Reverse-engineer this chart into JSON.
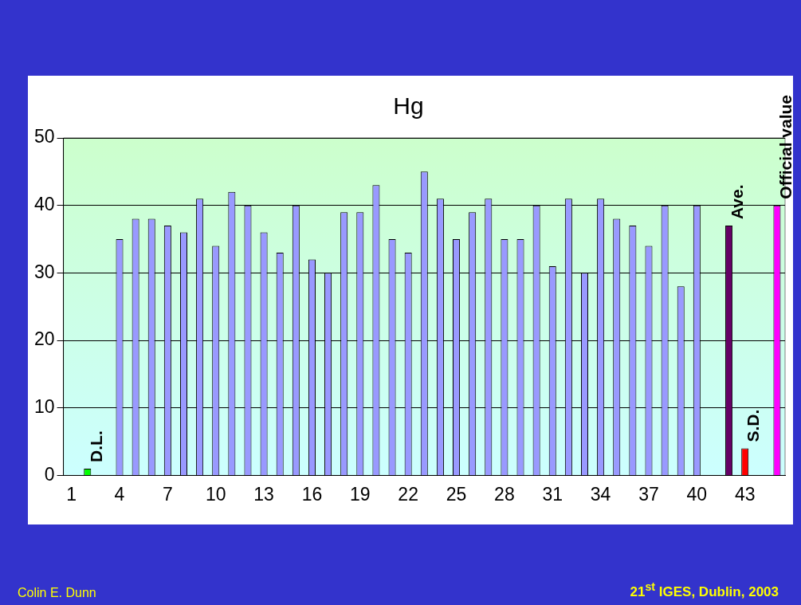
{
  "chart_data": {
    "type": "bar",
    "title": "Hg",
    "categories": [
      "1",
      null,
      null,
      "4",
      null,
      null,
      "7",
      null,
      null,
      "10",
      null,
      null,
      "13",
      null,
      null,
      "16",
      null,
      null,
      "19",
      null,
      null,
      "22",
      null,
      null,
      "25",
      null,
      null,
      "28",
      null,
      null,
      "31",
      null,
      null,
      "34",
      null,
      null,
      "37",
      null,
      null,
      "40",
      null,
      null,
      "43",
      null,
      null
    ],
    "series": [
      {
        "color": "#9999ff",
        "values": [
          null,
          null,
          null,
          35,
          38,
          38,
          37,
          36,
          41,
          34,
          42,
          40,
          36,
          33,
          40,
          32,
          30,
          39,
          39,
          43,
          35,
          33,
          45,
          41,
          35,
          39,
          41,
          35,
          35,
          40,
          31,
          41,
          30,
          41,
          38,
          37,
          34,
          40,
          28,
          40,
          null,
          null,
          null,
          null,
          null
        ]
      },
      {
        "name": "D.L.",
        "color": "#00ff00",
        "values": [
          null,
          1,
          null,
          null,
          null,
          null,
          null,
          null,
          null,
          null,
          null,
          null,
          null,
          null,
          null,
          null,
          null,
          null,
          null,
          null,
          null,
          null,
          null,
          null,
          null,
          null,
          null,
          null,
          null,
          null,
          null,
          null,
          null,
          null,
          null,
          null,
          null,
          null,
          null,
          null,
          null,
          null,
          null,
          null,
          null
        ]
      },
      {
        "name": "Ave.",
        "color": "#660066",
        "values": [
          null,
          null,
          null,
          null,
          null,
          null,
          null,
          null,
          null,
          null,
          null,
          null,
          null,
          null,
          null,
          null,
          null,
          null,
          null,
          null,
          null,
          null,
          null,
          null,
          null,
          null,
          null,
          null,
          null,
          null,
          null,
          null,
          null,
          null,
          null,
          null,
          null,
          null,
          null,
          null,
          null,
          37,
          null,
          null,
          null
        ]
      },
      {
        "name": "S.D.",
        "color": "#ff0000",
        "values": [
          null,
          null,
          null,
          null,
          null,
          null,
          null,
          null,
          null,
          null,
          null,
          null,
          null,
          null,
          null,
          null,
          null,
          null,
          null,
          null,
          null,
          null,
          null,
          null,
          null,
          null,
          null,
          null,
          null,
          null,
          null,
          null,
          null,
          null,
          null,
          null,
          null,
          null,
          null,
          null,
          null,
          null,
          4,
          null,
          null
        ]
      },
      {
        "name": "Official value",
        "color": "#ff00ff",
        "values": [
          null,
          null,
          null,
          null,
          null,
          null,
          null,
          null,
          null,
          null,
          null,
          null,
          null,
          null,
          null,
          null,
          null,
          null,
          null,
          null,
          null,
          null,
          null,
          null,
          null,
          null,
          null,
          null,
          null,
          null,
          null,
          null,
          null,
          null,
          null,
          null,
          null,
          null,
          null,
          null,
          null,
          null,
          null,
          null,
          40
        ]
      }
    ],
    "ylim": [
      0,
      50
    ],
    "yticks": [
      0,
      10,
      20,
      30,
      40,
      50
    ],
    "grid": "y",
    "annotations": [
      "Colin E. Dunn",
      "21$^{st}$ IGES, Dublin,  2003"
    ]
  }
}
